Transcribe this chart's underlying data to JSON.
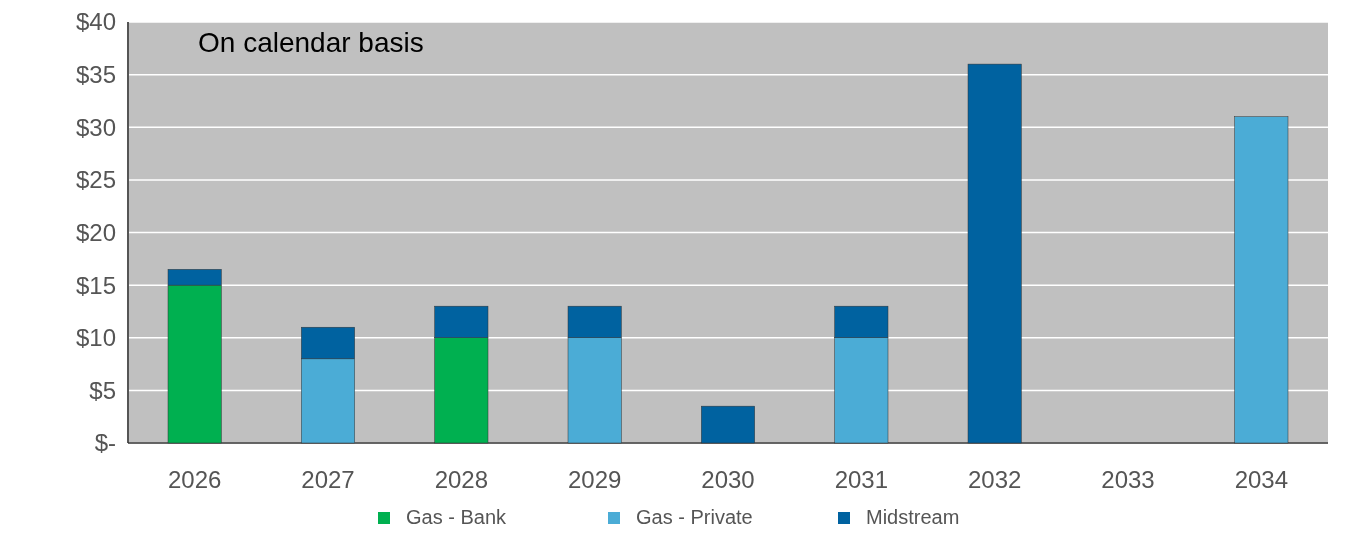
{
  "chart_data": {
    "type": "bar",
    "stacked": true,
    "categories": [
      "2026",
      "2027",
      "2028",
      "2029",
      "2030",
      "2031",
      "2032",
      "2033",
      "2034"
    ],
    "series": [
      {
        "name": "Gas - Bank",
        "color": "#00b050",
        "values": [
          15,
          0,
          10,
          0,
          0,
          0,
          0,
          0,
          0
        ]
      },
      {
        "name": "Gas - Private",
        "color": "#4bacd6",
        "values": [
          0,
          8,
          0,
          10,
          0,
          10,
          0,
          0,
          31
        ]
      },
      {
        "name": "Midstream",
        "color": "#0062a0",
        "values": [
          1.5,
          3,
          3,
          3,
          3.5,
          3,
          36,
          0,
          0
        ]
      }
    ],
    "ylim": [
      0,
      40
    ],
    "yticks": [
      {
        "value": 0,
        "label": "$-"
      },
      {
        "value": 5,
        "label": "$5"
      },
      {
        "value": 10,
        "label": "$10"
      },
      {
        "value": 15,
        "label": "$15"
      },
      {
        "value": 20,
        "label": "$20"
      },
      {
        "value": 25,
        "label": "$25"
      },
      {
        "value": 30,
        "label": "$30"
      },
      {
        "value": 35,
        "label": "$35"
      },
      {
        "value": 40,
        "label": "$40"
      }
    ],
    "grid": "y",
    "legend": "bottom",
    "annotations": [
      "On calendar basis"
    ]
  }
}
